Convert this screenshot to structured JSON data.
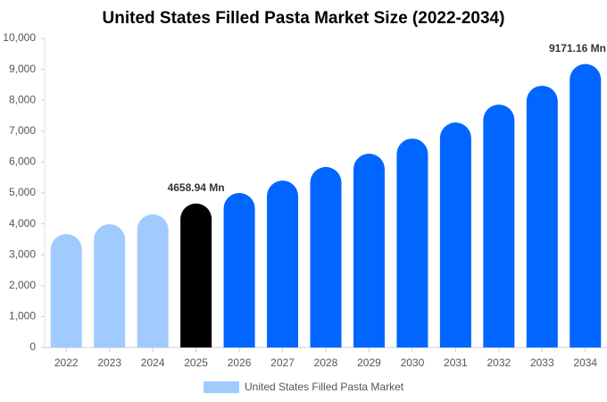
{
  "chart_data": {
    "type": "bar",
    "title": "United States Filled Pasta Market Size (2022-2034)",
    "categories": [
      "2022",
      "2023",
      "2024",
      "2025",
      "2026",
      "2027",
      "2028",
      "2029",
      "2030",
      "2031",
      "2032",
      "2033",
      "2034"
    ],
    "series": [
      {
        "name": "United States Filled Pasta Market",
        "color": "#a0cbff",
        "colors": [
          "#a0cbff",
          "#a0cbff",
          "#a0cbff",
          "#000000",
          "#0066ff",
          "#0066ff",
          "#0066ff",
          "#0066ff",
          "#0066ff",
          "#0066ff",
          "#0066ff",
          "#0066ff",
          "#0066ff"
        ],
        "values": [
          3670,
          3990,
          4310,
          4658.94,
          5000,
          5400,
          5840,
          6270,
          6760,
          7280,
          7860,
          8470,
          9171.16
        ],
        "value_labels": [
          null,
          null,
          null,
          "4658.94 Mn",
          null,
          null,
          null,
          null,
          null,
          null,
          null,
          null,
          "9171.16 Mn"
        ]
      }
    ],
    "ylim": [
      0,
      10000
    ],
    "yticks": [
      0,
      {
        "value": 1000,
        "label": "1,000"
      },
      {
        "value": 2000,
        "label": "2,000"
      },
      {
        "value": 3000,
        "label": "3,000"
      },
      {
        "value": 4000,
        "label": "4,000"
      },
      {
        "value": 5000,
        "label": "5,000"
      },
      {
        "value": 6000,
        "label": "6,000"
      },
      {
        "value": 7000,
        "label": "7,000"
      },
      {
        "value": 8000,
        "label": "8,000"
      },
      {
        "value": 9000,
        "label": "9,000"
      },
      {
        "value": 10000,
        "label": "10,000"
      }
    ],
    "grid": false
  }
}
